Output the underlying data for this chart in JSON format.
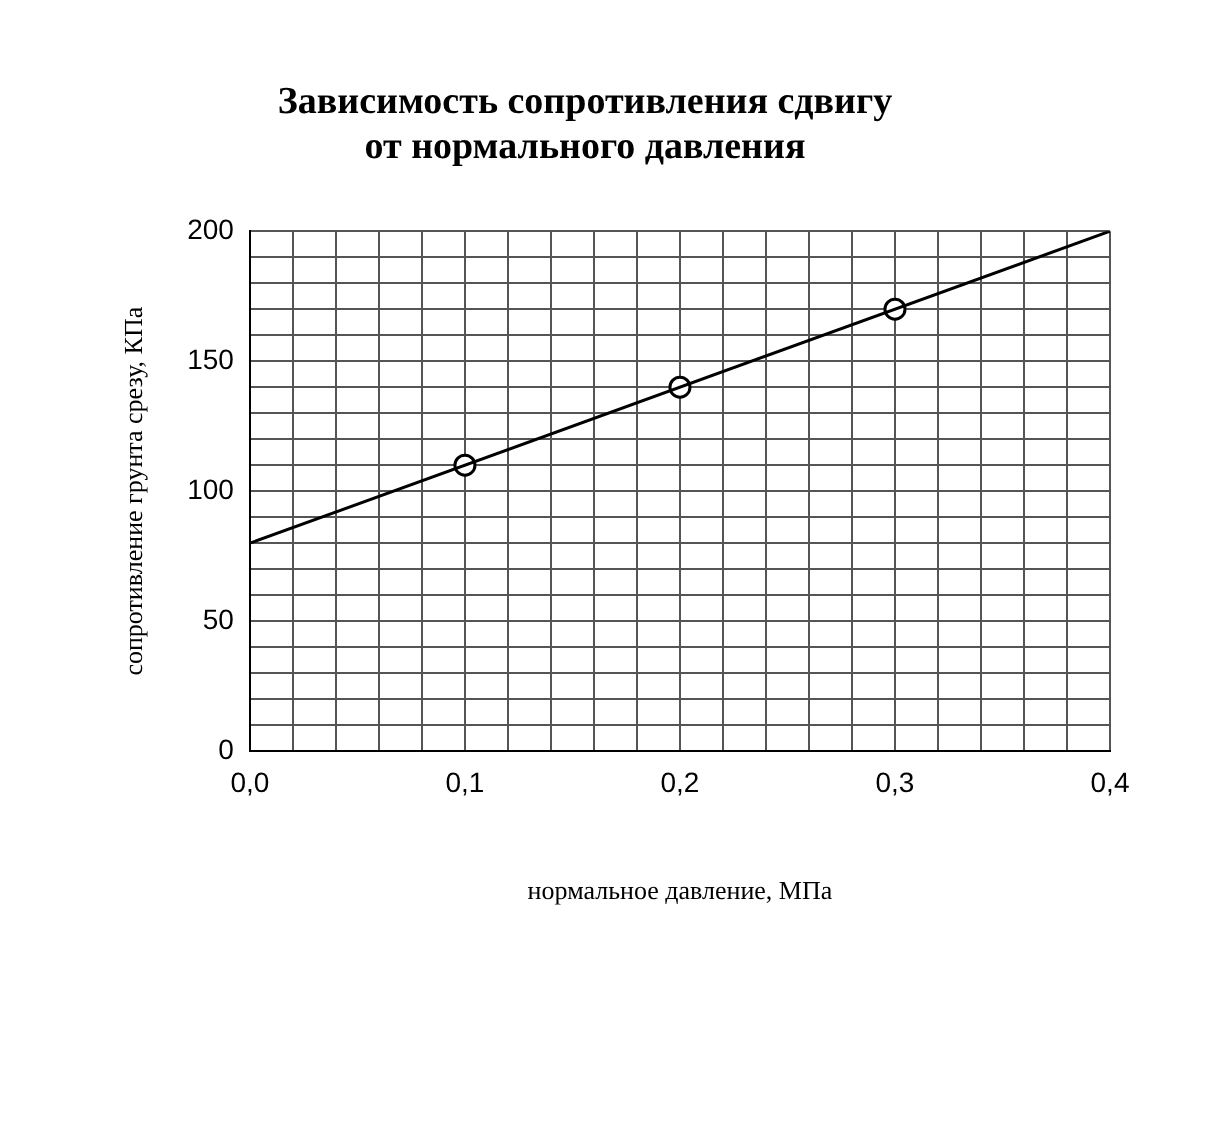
{
  "chart_data": {
    "type": "scatter",
    "title": "Зависимость сопротивления сдвигу\nот нормального давления",
    "xlabel": "нормальное давление, МПа",
    "ylabel": "сопротивление грунта срезу, КПа",
    "series": [
      {
        "type": "line",
        "x": [
          0,
          0.4
        ],
        "values": [
          80,
          200
        ],
        "color": "#000000",
        "marker": "none"
      },
      {
        "type": "scatter",
        "x": [
          0.1,
          0.2,
          0.3
        ],
        "values": [
          110,
          140,
          170
        ],
        "color": "#000000",
        "marker": "circle"
      }
    ],
    "xlim": [
      0,
      0.4
    ],
    "xticks": [
      {
        "value": 0,
        "label": "0,0"
      },
      {
        "value": 0.02,
        "label": null
      },
      {
        "value": 0.04,
        "label": null
      },
      {
        "value": 0.06,
        "label": null
      },
      {
        "value": 0.08,
        "label": null
      },
      {
        "value": 0.1,
        "label": "0,1"
      },
      {
        "value": 0.12,
        "label": null
      },
      {
        "value": 0.14,
        "label": null
      },
      {
        "value": 0.16,
        "label": null
      },
      {
        "value": 0.18,
        "label": null
      },
      {
        "value": 0.2,
        "label": "0,2"
      },
      {
        "value": 0.22,
        "label": null
      },
      {
        "value": 0.24,
        "label": null
      },
      {
        "value": 0.26,
        "label": null
      },
      {
        "value": 0.28,
        "label": null
      },
      {
        "value": 0.3,
        "label": "0,3"
      },
      {
        "value": 0.32,
        "label": null
      },
      {
        "value": 0.34,
        "label": null
      },
      {
        "value": 0.36,
        "label": null
      },
      {
        "value": 0.38,
        "label": null
      },
      {
        "value": 0.4,
        "label": "0,4"
      }
    ],
    "ylim": [
      0,
      200
    ],
    "yticks": [
      0,
      {
        "value": 10,
        "label": null
      },
      {
        "value": 20,
        "label": null
      },
      {
        "value": 30,
        "label": null
      },
      {
        "value": 40,
        "label": null
      },
      50,
      {
        "value": 60,
        "label": null
      },
      {
        "value": 70,
        "label": null
      },
      {
        "value": 80,
        "label": null
      },
      {
        "value": 90,
        "label": null
      },
      100,
      {
        "value": 110,
        "label": null
      },
      {
        "value": 120,
        "label": null
      },
      {
        "value": 130,
        "label": null
      },
      {
        "value": 140,
        "label": null
      },
      150,
      {
        "value": 160,
        "label": null
      },
      {
        "value": 170,
        "label": null
      },
      {
        "value": 180,
        "label": null
      },
      {
        "value": 190,
        "label": null
      },
      200
    ],
    "grid": true,
    "legend": false
  }
}
